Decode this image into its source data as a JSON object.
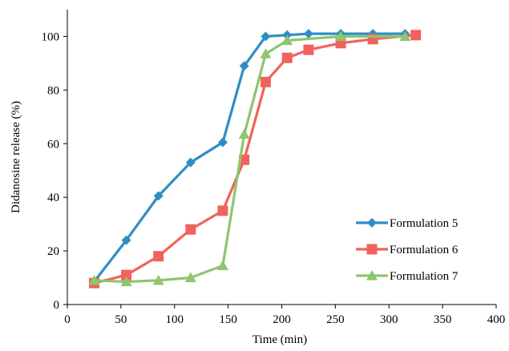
{
  "chart_data": {
    "type": "line",
    "title": "",
    "xlabel": "Time (min)",
    "ylabel": "Didanosine  release (%)",
    "xlim": [
      0,
      400
    ],
    "ylim": [
      0,
      110
    ],
    "xticks": [
      0,
      50,
      100,
      150,
      200,
      250,
      300,
      350,
      400
    ],
    "yticks": [
      0,
      20,
      40,
      60,
      80,
      100
    ],
    "grid": false,
    "legend_position": "bottom-right",
    "series": [
      {
        "name": "Formulation 5",
        "color": "#2e8ec4",
        "marker": "diamond",
        "x": [
          25,
          55,
          85,
          115,
          145,
          165,
          185,
          205,
          225,
          255,
          285,
          315
        ],
        "y": [
          8.5,
          24,
          40.5,
          53,
          60.5,
          89,
          100,
          100.5,
          101,
          101,
          101,
          101
        ]
      },
      {
        "name": "Formulation 6",
        "color": "#f0625c",
        "marker": "square",
        "x": [
          25,
          55,
          85,
          115,
          145,
          165,
          185,
          205,
          225,
          255,
          285,
          325
        ],
        "y": [
          8,
          11,
          18,
          28,
          35,
          54,
          83,
          92,
          95,
          97.5,
          99,
          100.5
        ]
      },
      {
        "name": "Formulation 7",
        "color": "#8ec56e",
        "marker": "triangle",
        "x": [
          25,
          55,
          85,
          115,
          145,
          165,
          185,
          205,
          255,
          315
        ],
        "y": [
          9,
          8.5,
          9,
          10,
          14.5,
          63.5,
          93.5,
          98.5,
          100,
          100
        ]
      }
    ]
  }
}
